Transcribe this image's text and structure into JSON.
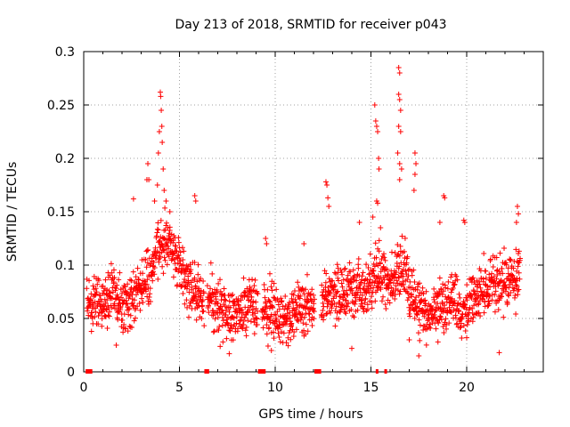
{
  "chart_data": {
    "type": "scatter",
    "title": "Day 213 of 2018, SRMTID for receiver p043",
    "xlabel": "GPS time / hours",
    "ylabel": "SRMTID / TECUs",
    "xlim": [
      0,
      24
    ],
    "ylim": [
      0,
      0.3
    ],
    "x_ticks": [
      0,
      5,
      10,
      15,
      20
    ],
    "x_tick_labels": [
      "0",
      "5",
      "10",
      "15",
      "20"
    ],
    "y_ticks": [
      0,
      0.05,
      0.1,
      0.15,
      0.2,
      0.25,
      0.3
    ],
    "y_tick_labels": [
      "0",
      "0.05",
      "0.1",
      "0.15",
      "0.2",
      "0.25",
      "0.3"
    ],
    "grid": true,
    "marker": "+",
    "color": "#ff0000",
    "baseline_segments_hours": [
      [
        0.1,
        0.45
      ],
      [
        6.3,
        6.55
      ],
      [
        9.1,
        9.5
      ],
      [
        12.05,
        12.4
      ],
      [
        15.25,
        15.35
      ],
      [
        15.7,
        15.8
      ]
    ],
    "series": [
      {
        "name": "SRMTID",
        "profile_x": [
          0,
          0.5,
          1,
          1.5,
          2,
          2.5,
          3,
          3.5,
          4,
          4.3,
          4.6,
          5,
          5.5,
          6,
          6.5,
          7,
          7.5,
          8,
          8.5,
          9,
          9.5,
          10,
          10.5,
          11,
          11.5,
          12,
          12.5,
          13,
          13.5,
          14,
          14.5,
          15,
          15.3,
          15.6,
          16,
          16.3,
          16.6,
          17,
          17.5,
          18,
          18.5,
          19,
          19.5,
          20,
          20.5,
          21,
          21.5,
          22,
          22.5,
          22.8
        ],
        "profile_y": [
          0.065,
          0.06,
          0.07,
          0.075,
          0.06,
          0.07,
          0.08,
          0.09,
          0.12,
          0.13,
          0.12,
          0.1,
          0.08,
          0.07,
          0.075,
          0.06,
          0.05,
          0.055,
          0.06,
          0.065,
          0.06,
          0.055,
          0.05,
          0.055,
          0.06,
          0.065,
          0.07,
          0.075,
          0.07,
          0.08,
          0.075,
          0.08,
          0.1,
          0.09,
          0.08,
          0.09,
          0.1,
          0.08,
          0.06,
          0.055,
          0.06,
          0.065,
          0.06,
          0.06,
          0.07,
          0.075,
          0.08,
          0.085,
          0.09,
          0.1
        ],
        "spread": 0.018,
        "count": 1900,
        "outliers": [
          [
            3.3,
            0.18
          ],
          [
            3.35,
            0.195
          ],
          [
            3.4,
            0.18
          ],
          [
            3.7,
            0.16
          ],
          [
            3.85,
            0.175
          ],
          [
            3.9,
            0.205
          ],
          [
            3.95,
            0.225
          ],
          [
            4.0,
            0.262
          ],
          [
            4.02,
            0.258
          ],
          [
            4.05,
            0.245
          ],
          [
            4.08,
            0.23
          ],
          [
            4.1,
            0.215
          ],
          [
            4.15,
            0.19
          ],
          [
            4.2,
            0.17
          ],
          [
            4.3,
            0.16
          ],
          [
            4.5,
            0.15
          ],
          [
            5.8,
            0.165
          ],
          [
            5.85,
            0.16
          ],
          [
            2.6,
            0.162
          ],
          [
            9.5,
            0.125
          ],
          [
            9.55,
            0.12
          ],
          [
            11.5,
            0.12
          ],
          [
            12.65,
            0.178
          ],
          [
            12.7,
            0.175
          ],
          [
            12.75,
            0.163
          ],
          [
            12.8,
            0.155
          ],
          [
            14.4,
            0.14
          ],
          [
            15.2,
            0.25
          ],
          [
            15.25,
            0.235
          ],
          [
            15.3,
            0.23
          ],
          [
            15.35,
            0.225
          ],
          [
            15.4,
            0.2
          ],
          [
            15.42,
            0.19
          ],
          [
            15.3,
            0.16
          ],
          [
            15.35,
            0.158
          ],
          [
            15.1,
            0.145
          ],
          [
            15.5,
            0.135
          ],
          [
            16.45,
            0.285
          ],
          [
            16.5,
            0.28
          ],
          [
            16.45,
            0.26
          ],
          [
            16.5,
            0.255
          ],
          [
            16.55,
            0.245
          ],
          [
            16.45,
            0.23
          ],
          [
            16.55,
            0.225
          ],
          [
            16.4,
            0.205
          ],
          [
            16.5,
            0.195
          ],
          [
            16.6,
            0.19
          ],
          [
            16.5,
            0.18
          ],
          [
            17.3,
            0.205
          ],
          [
            17.35,
            0.195
          ],
          [
            17.3,
            0.185
          ],
          [
            17.25,
            0.17
          ],
          [
            18.8,
            0.165
          ],
          [
            18.85,
            0.163
          ],
          [
            18.6,
            0.14
          ],
          [
            19.85,
            0.142
          ],
          [
            19.9,
            0.14
          ],
          [
            22.65,
            0.155
          ],
          [
            22.7,
            0.148
          ],
          [
            22.6,
            0.14
          ],
          [
            9.8,
            0.02
          ],
          [
            7.6,
            0.017
          ],
          [
            17.0,
            0.03
          ],
          [
            17.5,
            0.015
          ],
          [
            18.5,
            0.028
          ],
          [
            21.7,
            0.018
          ],
          [
            14.0,
            0.022
          ],
          [
            1.7,
            0.025
          ],
          [
            20.0,
            0.032
          ]
        ]
      }
    ]
  }
}
